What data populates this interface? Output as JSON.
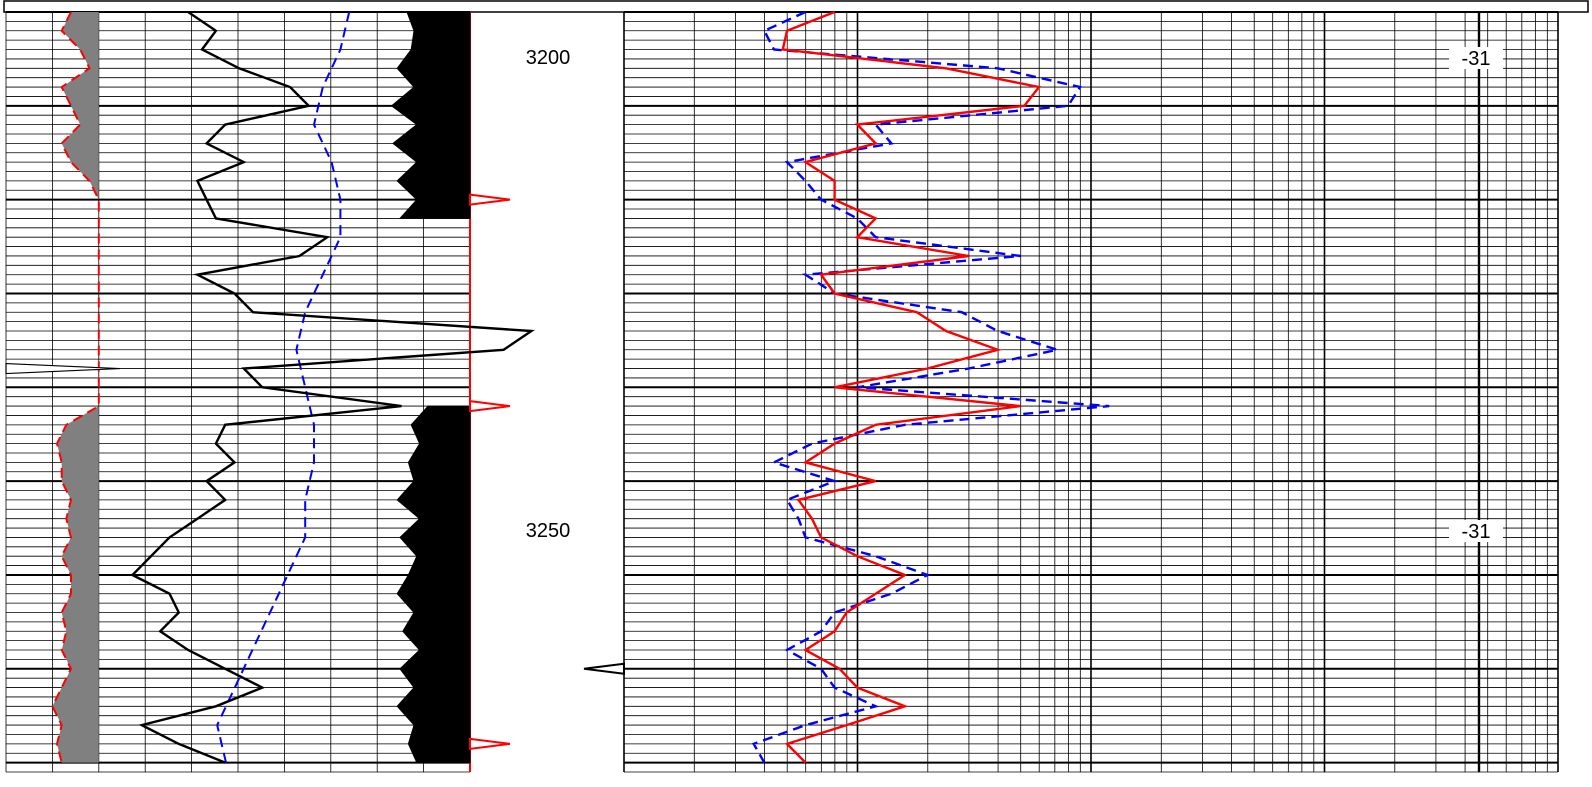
{
  "chart_data": {
    "type": "line",
    "title": "",
    "depth_axis": {
      "range": [
        3190,
        3271
      ],
      "labels": [
        3200,
        3250
      ]
    },
    "track1": {
      "x_range": [
        0,
        100
      ],
      "gamma_ray": {
        "color": "#000000",
        "style": "solid",
        "depth": [
          3190,
          3192,
          3194,
          3196,
          3198,
          3200,
          3202,
          3204,
          3206,
          3208,
          3210,
          3212,
          3214,
          3216,
          3218,
          3220,
          3222,
          3224,
          3226,
          3228,
          3230,
          3232,
          3234,
          3236,
          3238,
          3240,
          3242,
          3244,
          3246,
          3248,
          3250,
          3252,
          3254,
          3256,
          3258,
          3260,
          3262,
          3264,
          3266,
          3268,
          3270
        ],
        "values": [
          22,
          28,
          25,
          33,
          44,
          48,
          30,
          26,
          34,
          24,
          26,
          28,
          52,
          46,
          24,
          32,
          36,
          96,
          90,
          34,
          38,
          68,
          30,
          28,
          32,
          26,
          30,
          24,
          18,
          14,
          10,
          18,
          20,
          16,
          22,
          30,
          38,
          28,
          12,
          20,
          30
        ]
      },
      "sp": {
        "color": "#ff0000",
        "style": "dashed",
        "depth": [
          3190,
          3192,
          3194,
          3196,
          3198,
          3200,
          3202,
          3204,
          3206,
          3208,
          3210,
          3212,
          3214,
          3216,
          3218,
          3220,
          3222,
          3224,
          3226,
          3228,
          3230,
          3232,
          3234,
          3236,
          3238,
          3240,
          3242,
          3244,
          3246,
          3248,
          3250,
          3252,
          3254,
          3256,
          3258,
          3260,
          3262,
          3264,
          3266,
          3268,
          3270
        ],
        "values": [
          14,
          12,
          16,
          18,
          12,
          14,
          16,
          12,
          14,
          18,
          20,
          20,
          20,
          20,
          20,
          20,
          20,
          20,
          20,
          20,
          20,
          20,
          13,
          11,
          12,
          12,
          14,
          13,
          14,
          12,
          14,
          14,
          12,
          13,
          12,
          14,
          12,
          10,
          12,
          11,
          12
        ]
      },
      "baseline": 20
    },
    "track2": {
      "x_range": [
        0,
        100
      ],
      "neutron": {
        "color": "#0000ff",
        "style": "dashed",
        "depth": [
          3190,
          3194,
          3198,
          3202,
          3206,
          3210,
          3214,
          3218,
          3222,
          3226,
          3230,
          3234,
          3238,
          3242,
          3246,
          3250,
          3254,
          3258,
          3262,
          3266,
          3270
        ],
        "values": [
          39,
          38,
          36,
          35,
          37,
          38,
          38,
          36,
          34,
          33,
          34,
          35,
          35,
          34,
          34,
          32,
          30,
          28,
          26,
          24,
          25
        ]
      },
      "density": {
        "color": "#000000",
        "style": "fill",
        "depth": [
          3190,
          3192,
          3194,
          3196,
          3198,
          3200,
          3202,
          3204,
          3206,
          3208,
          3210,
          3212,
          3232,
          3234,
          3236,
          3238,
          3240,
          3242,
          3244,
          3246,
          3248,
          3250,
          3252,
          3254,
          3256,
          3258,
          3260,
          3262,
          3264,
          3266,
          3268,
          3270
        ],
        "values": [
          55,
          60,
          58,
          48,
          60,
          44,
          62,
          45,
          62,
          48,
          62,
          50,
          70,
          58,
          64,
          56,
          60,
          48,
          64,
          50,
          62,
          56,
          48,
          60,
          52,
          64,
          50,
          60,
          48,
          60,
          56,
          62
        ]
      },
      "markers": [
        3210,
        3232,
        3268
      ]
    },
    "track3": {
      "x_scale": "log",
      "deep_resistivity": {
        "color": "#ff0000",
        "style": "solid",
        "depth": [
          3190,
          3192,
          3194,
          3196,
          3198,
          3200,
          3202,
          3204,
          3206,
          3208,
          3210,
          3212,
          3214,
          3216,
          3218,
          3220,
          3222,
          3224,
          3226,
          3228,
          3230,
          3232,
          3234,
          3236,
          3238,
          3240,
          3242,
          3244,
          3246,
          3248,
          3250,
          3252,
          3254,
          3256,
          3258,
          3260,
          3262,
          3264,
          3266,
          3268,
          3270
        ],
        "values": [
          4,
          2.5,
          2.4,
          12,
          30,
          26,
          5,
          6,
          3,
          4,
          4,
          6,
          5,
          15,
          3.5,
          4,
          9,
          12,
          20,
          10,
          4,
          25,
          6,
          4,
          3,
          6,
          2.8,
          3.2,
          3.5,
          5,
          8,
          6,
          4.5,
          4,
          3,
          4.2,
          5,
          8,
          4.5,
          2.5,
          3
        ]
      },
      "shallow_resistivity": {
        "color": "#0000ff",
        "style": "dashed",
        "depth": [
          3190,
          3192,
          3194,
          3196,
          3198,
          3200,
          3202,
          3204,
          3206,
          3208,
          3210,
          3212,
          3214,
          3216,
          3218,
          3220,
          3222,
          3224,
          3226,
          3228,
          3230,
          3232,
          3234,
          3236,
          3238,
          3240,
          3242,
          3244,
          3246,
          3248,
          3250,
          3252,
          3254,
          3256,
          3258,
          3260,
          3262,
          3264,
          3266,
          3268,
          3270
        ],
        "values": [
          3,
          2,
          2.2,
          20,
          45,
          40,
          6,
          7,
          2.5,
          3,
          3.5,
          5,
          6,
          25,
          3,
          4,
          14,
          20,
          36,
          15,
          5,
          60,
          8,
          3.2,
          2.2,
          4,
          2.5,
          2.8,
          3,
          6,
          10,
          7,
          4,
          3.5,
          2.5,
          3.5,
          4,
          6,
          3,
          1.8,
          2
        ]
      },
      "temperature_readout": {
        "label_1": "-31",
        "label_2": "-31"
      }
    }
  }
}
